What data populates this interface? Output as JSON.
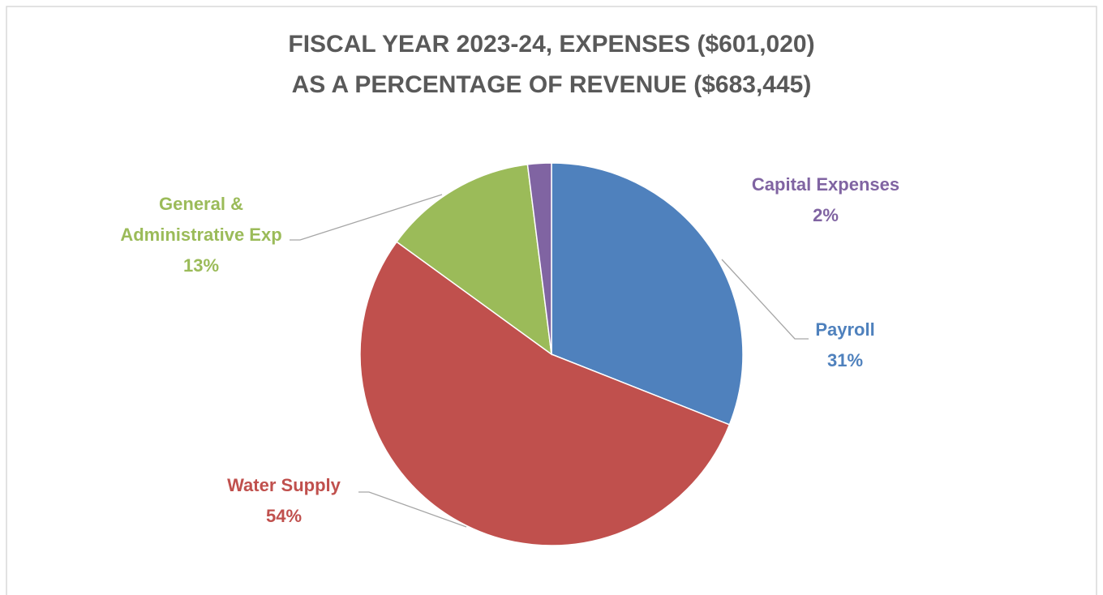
{
  "chart_data": {
    "type": "pie",
    "title": [
      "FISCAL YEAR 2023-24, EXPENSES ($601,020)",
      "AS A PERCENTAGE OF REVENUE ($683,445)"
    ],
    "categories": [
      "Payroll",
      "Water Supply",
      "General & Administrative Exp",
      "Capital Expenses"
    ],
    "values": [
      31,
      54,
      13,
      2
    ],
    "value_labels": [
      "31%",
      "54%",
      "13%",
      "2%"
    ],
    "colors": [
      "#4f81bd",
      "#c0504d",
      "#9bbb59",
      "#8064a2"
    ]
  }
}
